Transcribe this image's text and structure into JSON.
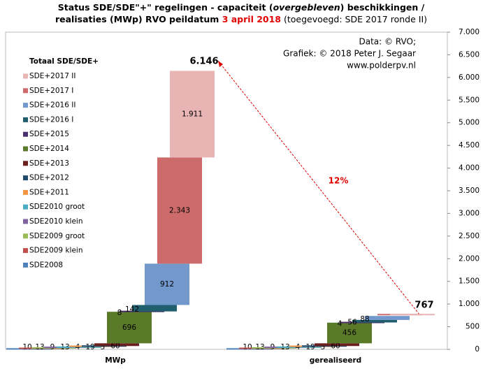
{
  "chart_data": {
    "type": "waterfall",
    "title": [
      "Status SDE/SDE\"+\"  regelingen - capaciteit (",
      "overgebleven",
      ") beschikkingen  /",
      "realisaties (MWp) RVO peildatum ",
      "3 april 2018",
      " (toegevoegd: SDE 2017 ronde II)"
    ],
    "legend_title": "Totaal SDE/SDE+",
    "credits": [
      "Data: © RVO;",
      "Grafiek:  © 2018 Peter J. Segaar",
      "www.polderpv.nl"
    ],
    "annotation": "12%",
    "categories": [
      "MWp",
      "gerealiseerd"
    ],
    "totals": [
      {
        "value": 6146,
        "label": "6.146"
      },
      767
    ],
    "ylim": [
      0,
      7000
    ],
    "yticks": [
      0,
      {
        "value": 500,
        "label": "500"
      },
      {
        "value": 1000,
        "label": "1.000"
      },
      {
        "value": 1500,
        "label": "1.500"
      },
      {
        "value": 2000,
        "label": "2.000"
      },
      {
        "value": 2500,
        "label": "2.500"
      },
      {
        "value": 3000,
        "label": "3.000"
      },
      {
        "value": 3500,
        "label": "3.500"
      },
      {
        "value": 4000,
        "label": "4.000"
      },
      {
        "value": 4500,
        "label": "4.500"
      },
      {
        "value": 5000,
        "label": "5.000"
      },
      {
        "value": 5500,
        "label": "5.500"
      },
      {
        "value": 6000,
        "label": "6.000"
      },
      {
        "value": 6500,
        "label": "6.500"
      },
      {
        "value": 7000,
        "label": "7.000"
      }
    ],
    "series": [
      {
        "name": "SDE+2017 II",
        "color": "#e8b4b4",
        "values": [
          1911,
          0
        ],
        "value_labels": [
          "1.911",
          null
        ]
      },
      {
        "name": "SDE+2017 I",
        "color": "#cd6b6b",
        "values": [
          2343,
          30
        ],
        "value_labels": [
          "2.343",
          null
        ]
      },
      {
        "name": "SDE+2016 II",
        "color": "#7399cc",
        "values": [
          912,
          88
        ]
      },
      {
        "name": "SDE+2016 I",
        "color": "#1f5f6e",
        "values": [
          142,
          56
        ]
      },
      {
        "name": "SDE+2015",
        "color": "#4b2e6b",
        "values": [
          8,
          4
        ]
      },
      {
        "name": "SDE+2014",
        "color": "#5a7a2a",
        "values": [
          696,
          456
        ]
      },
      {
        "name": "SDE+2013",
        "color": "#6b1f1f",
        "values": [
          60,
          60
        ]
      },
      {
        "name": "SDE+2012",
        "color": "#1f4a6b",
        "values": [
          5,
          5
        ]
      },
      {
        "name": "SDE+2011",
        "color": "#f29646",
        "values": [
          19,
          19
        ]
      },
      {
        "name": "SDE2010 groot",
        "color": "#4bacc6",
        "values": [
          4,
          4
        ]
      },
      {
        "name": "SDE2010 klein",
        "color": "#8064a2",
        "values": [
          13,
          13
        ]
      },
      {
        "name": "SDE2009 groot",
        "color": "#9bbb59",
        "values": [
          9,
          9
        ]
      },
      {
        "name": "SDE2009 klein",
        "color": "#c0504d",
        "values": [
          13,
          13
        ]
      },
      {
        "name": "SDE2008",
        "color": "#4f81bd",
        "values": [
          10,
          10
        ]
      }
    ]
  }
}
